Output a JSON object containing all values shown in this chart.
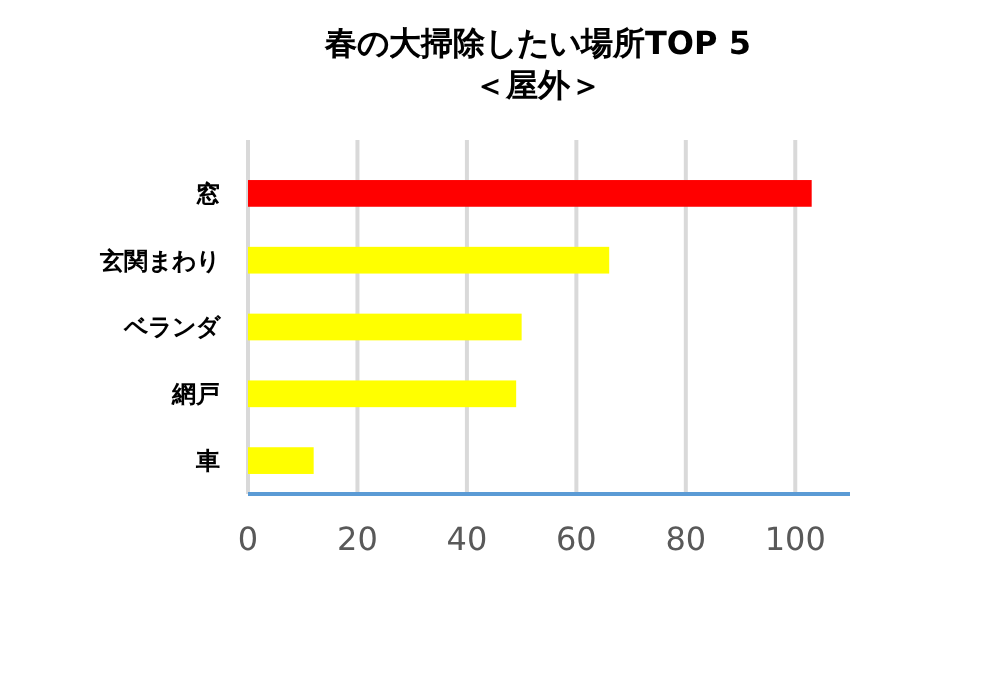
{
  "chart_data": {
    "type": "bar",
    "orientation": "horizontal",
    "title": "春の大掃除したい場所TOP 5\n＜屋外＞",
    "categories": [
      "窓",
      "玄関まわり",
      "ベランダ",
      "網戸",
      "車"
    ],
    "values": [
      103,
      66,
      50,
      49,
      12
    ],
    "colors": [
      "#ff0000",
      "#ffff00",
      "#ffff00",
      "#ffff00",
      "#ffff00"
    ],
    "xlim": [
      0,
      110
    ],
    "xticks": [
      0,
      20,
      40,
      60,
      80,
      100
    ],
    "grid": "x"
  }
}
